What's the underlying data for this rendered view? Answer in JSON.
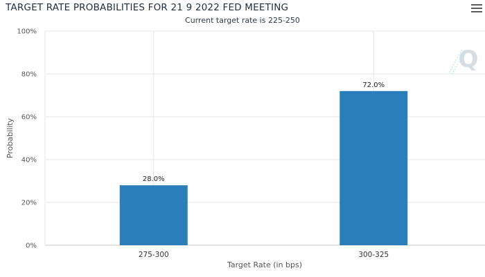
{
  "chart_data": {
    "type": "bar",
    "title": "TARGET RATE PROBABILITIES FOR 21 9 2022 FED MEETING",
    "subtitle": "Current target rate is 225-250",
    "categories": [
      "275-300",
      "300-325"
    ],
    "values": [
      28.0,
      72.0
    ],
    "data_labels": [
      "28.0%",
      "72.0%"
    ],
    "xlabel": "Target Rate (in bps)",
    "ylabel": "Probability",
    "ylim": [
      0,
      100
    ],
    "yticks": [
      "0%",
      "20%",
      "40%",
      "60%",
      "80%",
      "100%"
    ],
    "ytick_values": [
      0,
      20,
      40,
      60,
      80,
      100
    ],
    "bar_color": "#2a7fba",
    "grid": true
  },
  "watermark": "Q",
  "menu_icon": "hamburger-menu-icon"
}
